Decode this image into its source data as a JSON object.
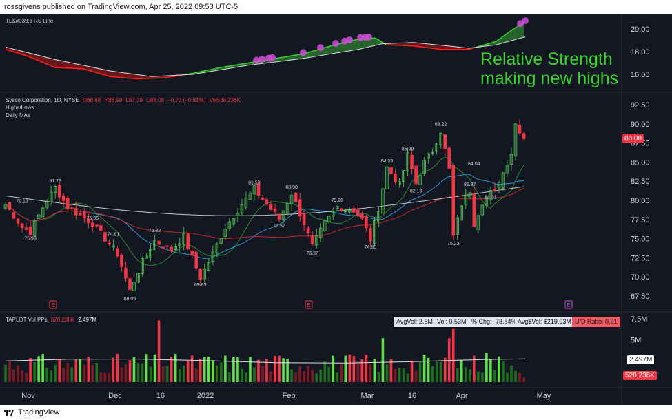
{
  "header": {
    "published": "rossgivens published on TradingView.com, Apr 25, 2022 09:53 UTC-5"
  },
  "footer": {
    "brand": "TradingView"
  },
  "rs_pane": {
    "indicator_label": "TL&#039;s RS Line",
    "y_ticks": [
      "20.00",
      "18.00",
      "16.00"
    ],
    "annotation_line1": "Relative Strength",
    "annotation_line2": "making new highs"
  },
  "price_pane": {
    "symbol": "Sysco Corporation, 1D, NYSE",
    "open": "O88.68",
    "high": "H88.99",
    "low": "L87.39",
    "close": "C88.08",
    "change": "−0.72 (−0.81%)",
    "volume": "Vol528.236K",
    "indicator1": "Highs/Lows",
    "indicator2": "Daily MAs",
    "y_ticks": [
      "92.50",
      "90.00",
      "87.50",
      "85.00",
      "82.50",
      "80.00",
      "77.50",
      "75.00",
      "72.50",
      "70.00",
      "67.50"
    ],
    "last_price": "88.08",
    "earnings_marker": "E"
  },
  "volume_pane": {
    "label": "TAPLOT Vol PPs",
    "current": "528.236K",
    "avg": "2.497M",
    "y_ticks": [
      "7.5M",
      "5M"
    ],
    "avg_tag": "2.497M",
    "vol_tag": "528.236K",
    "stats": {
      "avg_vol": "AvgVol: 2.5M",
      "vol": "Vol: 0.53M",
      "pct_chg": "% Chg: -78.84%",
      "avg_dollar": "Avg$Vol: $219.93M",
      "ud_ratio": "U/D Ratio: 0.91"
    }
  },
  "x_axis": [
    "Nov",
    "Dec",
    "16",
    "2022",
    "Feb",
    "Mar",
    "16",
    "Apr",
    "May"
  ],
  "colors": {
    "up": "#4caf50",
    "down": "#f23645",
    "rs_line_up": "#39d12e",
    "rs_line_down": "#ff1f1f",
    "highlight": "#d24fd9",
    "ma_green": "#2e8b2e",
    "ma_blue": "#2e9ad9",
    "ma_red": "#c62828",
    "ma_white": "#c8c8c8"
  },
  "chart_data": {
    "type": "candlestick",
    "title": "Sysco Corporation, 1D, NYSE",
    "ylim": [
      66.5,
      93.5
    ],
    "x_labels": [
      "Nov",
      "Dec",
      "16",
      "2022",
      "Feb",
      "Mar",
      "16",
      "Apr",
      "May"
    ],
    "annotated_highs_lows": [
      {
        "label": "81.79",
        "value": 81.79
      },
      {
        "label": "79.13",
        "value": 79.13
      },
      {
        "label": "75.93",
        "value": 75.93
      },
      {
        "label": "76.95",
        "value": 76.95
      },
      {
        "label": "74.81",
        "value": 74.81
      },
      {
        "label": "68.05",
        "value": 68.05
      },
      {
        "label": "75.32",
        "value": 75.32
      },
      {
        "label": "69.83",
        "value": 69.83
      },
      {
        "label": "81.59",
        "value": 81.59
      },
      {
        "label": "77.57",
        "value": 77.57
      },
      {
        "label": "80.98",
        "value": 80.98
      },
      {
        "label": "73.97",
        "value": 73.97
      },
      {
        "label": "79.28",
        "value": 79.28
      },
      {
        "label": "84.39",
        "value": 84.39
      },
      {
        "label": "74.80",
        "value": 74.8
      },
      {
        "label": "85.99",
        "value": 85.99
      },
      {
        "label": "82.13",
        "value": 82.13
      },
      {
        "label": "89.22",
        "value": 89.22
      },
      {
        "label": "75.23",
        "value": 75.23
      },
      {
        "label": "81.37",
        "value": 81.37
      },
      {
        "label": "84.04",
        "value": 84.04
      },
      {
        "label": "81.31",
        "value": 81.31
      }
    ],
    "moving_averages": [
      "fast green",
      "blue",
      "red",
      "white"
    ],
    "rs_line_ylim": [
      15,
      21
    ],
    "volume_ylim": [
      0,
      8
    ],
    "volume_unit": "M"
  }
}
